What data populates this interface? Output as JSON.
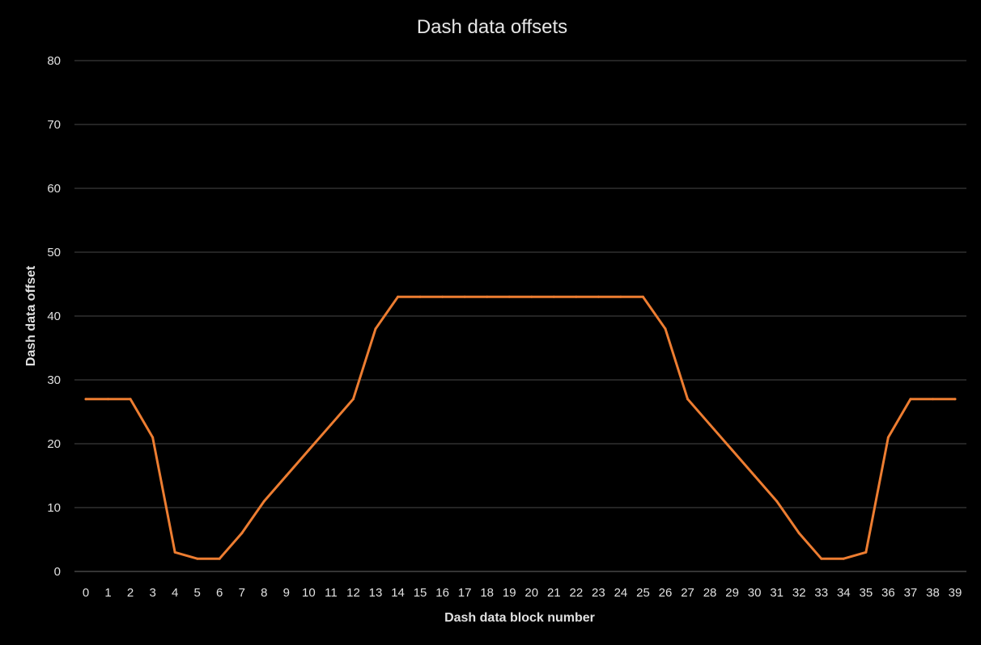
{
  "chart_data": {
    "type": "line",
    "title": "Dash data offsets",
    "xlabel": "Dash data block number",
    "ylabel": "Dash data offset",
    "ylim": [
      0,
      80
    ],
    "yticks": [
      0,
      10,
      20,
      30,
      40,
      50,
      60,
      70,
      80
    ],
    "categories": [
      "0",
      "1",
      "2",
      "3",
      "4",
      "5",
      "6",
      "7",
      "8",
      "9",
      "10",
      "11",
      "12",
      "13",
      "14",
      "15",
      "16",
      "17",
      "18",
      "19",
      "20",
      "21",
      "22",
      "23",
      "24",
      "25",
      "26",
      "27",
      "28",
      "29",
      "30",
      "31",
      "32",
      "33",
      "34",
      "35",
      "36",
      "37",
      "38",
      "39"
    ],
    "series": [
      {
        "values": [
          27,
          27,
          27,
          21,
          3,
          2,
          2,
          6,
          11,
          15,
          19,
          23,
          27,
          38,
          43,
          43,
          43,
          43,
          43,
          43,
          43,
          43,
          43,
          43,
          43,
          43,
          38,
          27,
          23,
          19,
          15,
          11,
          6,
          2,
          2,
          3,
          21,
          27,
          27,
          27
        ]
      }
    ],
    "grid": true,
    "colors": {
      "background": "#000000",
      "line": "#ED7D31",
      "grid": "#3a3a3a",
      "text": "#e0e0e0"
    }
  }
}
